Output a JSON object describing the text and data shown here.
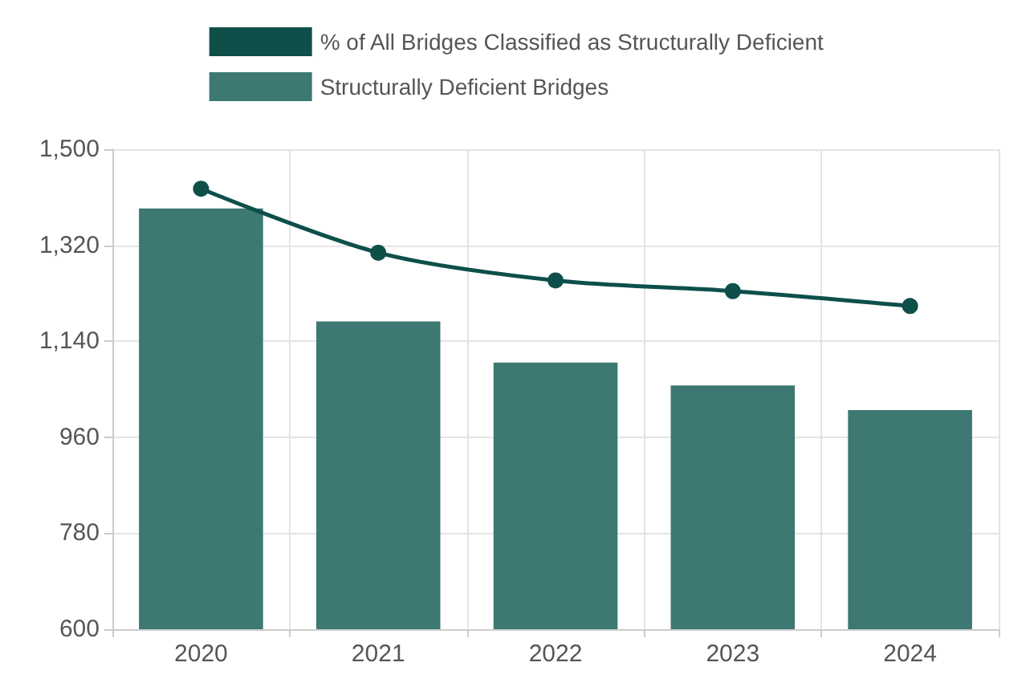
{
  "chart_data": {
    "type": "bar",
    "categories": [
      "2020",
      "2021",
      "2022",
      "2023",
      "2024"
    ],
    "series": [
      {
        "name": "% of All Bridges Classified as Structurally Deficient",
        "type": "line",
        "color": "#0e4f4a",
        "values": [
          1426,
          1306,
          1254,
          1234,
          1206
        ]
      },
      {
        "name": "Structurally Deficient Bridges",
        "color": "#3d7872",
        "values": [
          1389,
          1177,
          1100,
          1057,
          1011
        ]
      }
    ],
    "ylim": [
      600,
      1500
    ],
    "yticks": [
      600,
      780,
      960,
      {
        "value": 1140,
        "label": "1,140"
      },
      {
        "value": 1320,
        "label": "1,320"
      },
      {
        "value": 1500,
        "label": "1,500"
      }
    ],
    "grid": true,
    "legend": "top",
    "marker": "circle"
  }
}
